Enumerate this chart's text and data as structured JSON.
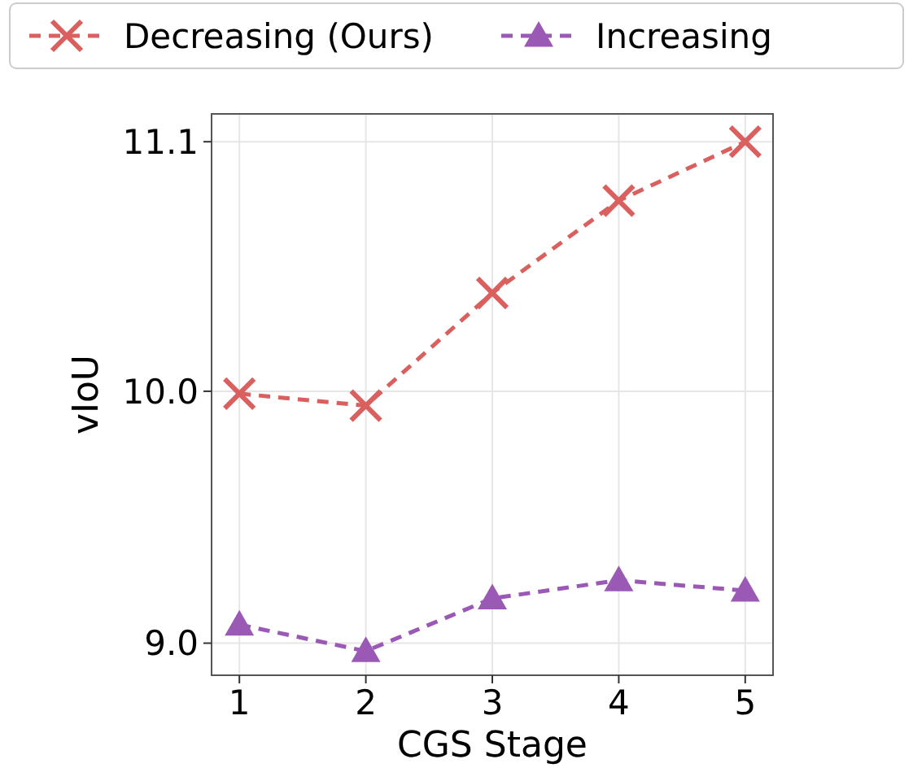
{
  "chart_data": {
    "type": "line",
    "xlabel": "CGS Stage",
    "ylabel": "vIoU",
    "x": [
      1,
      2,
      3,
      4,
      5
    ],
    "series": [
      {
        "name": "Decreasing (Ours)",
        "color": "#d9605f",
        "values": [
          9.99,
          9.94,
          10.42,
          10.83,
          11.1
        ],
        "marker": "cross"
      },
      {
        "name": "Increasing",
        "color": "#9b59b6",
        "values": [
          9.07,
          8.97,
          9.17,
          9.24,
          9.2
        ],
        "marker": "triangle"
      }
    ],
    "log": true,
    "xlim": [
      0.78,
      5.22
    ],
    "ylim": [
      8.88,
      11.23
    ],
    "xticks": [
      1,
      2,
      3,
      4,
      5
    ],
    "yticks": [
      {
        "value": 9,
        "label": "9.0"
      },
      {
        "value": 10,
        "label": "10.0"
      },
      11.1
    ],
    "grid": true,
    "legend": "top",
    "line_style": "dashed"
  }
}
